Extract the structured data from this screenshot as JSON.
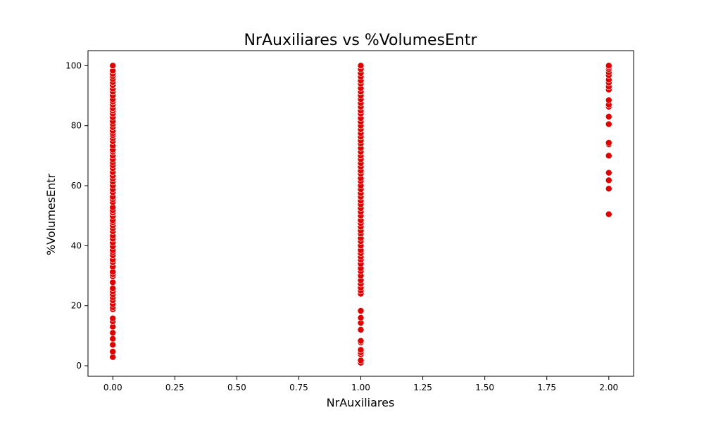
{
  "chart_data": {
    "type": "scatter",
    "title": "NrAuxiliares vs %VolumesEntr",
    "xlabel": "NrAuxiliares",
    "ylabel": "%VolumesEntr",
    "xlim": [
      -0.1,
      2.1
    ],
    "ylim": [
      -3.5,
      105
    ],
    "x_ticks": [
      "0.00",
      "0.25",
      "0.50",
      "0.75",
      "1.00",
      "1.25",
      "1.50",
      "1.75",
      "2.00"
    ],
    "y_ticks": [
      "0",
      "20",
      "40",
      "60",
      "80",
      "100"
    ],
    "grid": false,
    "marker_color": "#e00000",
    "marker_edge_color": "#ffffff",
    "series": [
      {
        "x": 0,
        "y": [
          2.9,
          4.7,
          7.0,
          9.0,
          11.0,
          13.0,
          14.8,
          15.8,
          18.8,
          19.5,
          20.5,
          21.8,
          22.8,
          23.8,
          24.8,
          25.8,
          27.8,
          29.8,
          30.5,
          31.3,
          33.0,
          34.5,
          35.3,
          36.8,
          37.8,
          38.5,
          39.8,
          41.0,
          42.3,
          43.3,
          44.8,
          45.8,
          46.8,
          47.8,
          48.5,
          49.8,
          51.0,
          51.8,
          52.8,
          54.5,
          55.5,
          56.3,
          57.8,
          58.8,
          60.0,
          61.3,
          62.3,
          63.3,
          64.5,
          65.8,
          66.8,
          67.8,
          68.8,
          70.0,
          71.3,
          72.0,
          73.3,
          74.8,
          75.8,
          76.8,
          77.5,
          78.3,
          79.5,
          80.5,
          81.5,
          82.8,
          84.0,
          85.0,
          85.8,
          87.0,
          88.0,
          88.8,
          90.0,
          91.3,
          92.3,
          93.5,
          94.5,
          95.5,
          96.5,
          97.3,
          98.3,
          100.0
        ]
      },
      {
        "x": 1,
        "y": [
          1.0,
          1.8,
          3.8,
          4.5,
          5.3,
          7.8,
          8.3,
          12.0,
          14.3,
          16.0,
          18.3,
          24.0,
          25.0,
          26.0,
          27.3,
          28.5,
          30.0,
          31.5,
          32.5,
          34.0,
          35.3,
          36.3,
          37.5,
          38.5,
          40.0,
          41.5,
          42.5,
          44.0,
          45.0,
          46.3,
          47.5,
          48.5,
          50.0,
          51.3,
          52.5,
          53.8,
          55.0,
          56.3,
          57.5,
          58.8,
          60.0,
          61.5,
          62.5,
          64.0,
          65.0,
          66.3,
          67.5,
          68.8,
          70.0,
          71.3,
          72.5,
          74.0,
          75.0,
          76.3,
          77.5,
          78.8,
          80.0,
          81.3,
          82.5,
          84.0,
          85.0,
          86.3,
          87.5,
          88.8,
          90.0,
          91.3,
          92.5,
          94.0,
          95.0,
          96.3,
          97.5,
          98.8,
          100.0
        ]
      },
      {
        "x": 2,
        "y": [
          50.5,
          59.0,
          61.8,
          64.3,
          70.0,
          73.8,
          74.3,
          80.5,
          83.0,
          86.3,
          87.0,
          88.5,
          92.0,
          93.0,
          94.3,
          95.3,
          96.8,
          97.8,
          98.8,
          99.5,
          100.0
        ]
      }
    ]
  }
}
